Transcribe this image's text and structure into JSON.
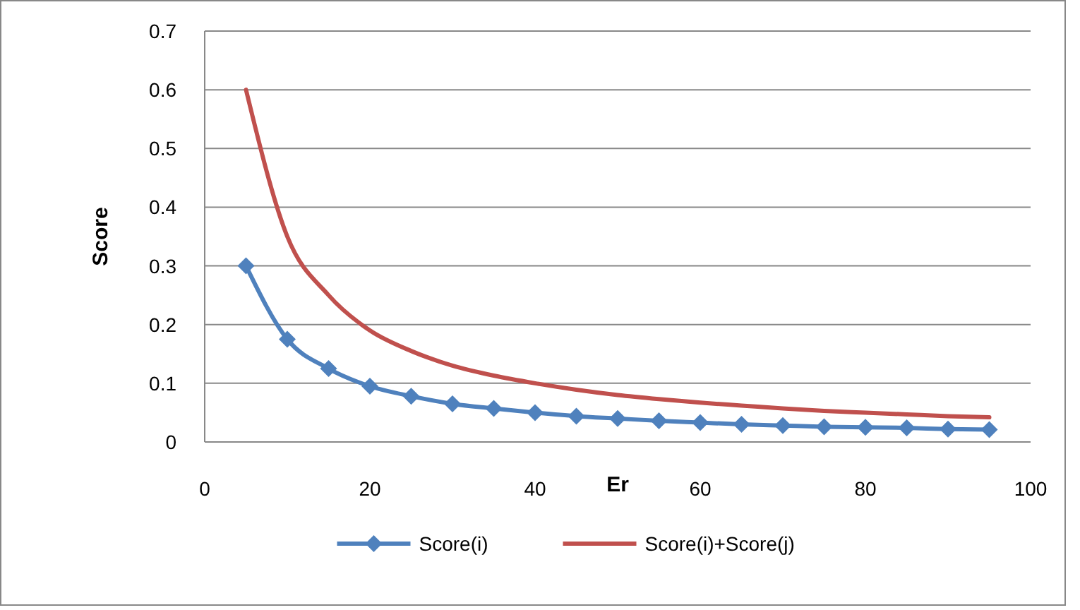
{
  "chart_data": {
    "type": "line",
    "xlabel": "Er",
    "ylabel": "Score",
    "x": [
      5,
      10,
      15,
      20,
      25,
      30,
      35,
      40,
      45,
      50,
      55,
      60,
      65,
      70,
      75,
      80,
      85,
      90,
      95
    ],
    "series": [
      {
        "name": "Score(i)",
        "color": "#4f81bd",
        "marker": "diamond",
        "values": [
          0.3,
          0.175,
          0.125,
          0.095,
          0.078,
          0.065,
          0.057,
          0.05,
          0.044,
          0.04,
          0.036,
          0.033,
          0.03,
          0.028,
          0.026,
          0.025,
          0.024,
          0.022,
          0.021
        ]
      },
      {
        "name": "Score(i)+Score(j)",
        "color": "#c0504d",
        "marker": "none",
        "values": [
          0.6,
          0.35,
          0.25,
          0.19,
          0.155,
          0.13,
          0.113,
          0.1,
          0.089,
          0.08,
          0.073,
          0.067,
          0.062,
          0.057,
          0.053,
          0.05,
          0.047,
          0.044,
          0.042
        ]
      }
    ],
    "xlim": [
      0,
      100
    ],
    "xticks": [
      0,
      20,
      40,
      60,
      80,
      100
    ],
    "ylim": [
      0,
      0.7
    ],
    "yticks": [
      0,
      0.1,
      0.2,
      0.3,
      0.4,
      0.5,
      0.6,
      0.7
    ],
    "grid": "y",
    "legend": "bottom"
  }
}
